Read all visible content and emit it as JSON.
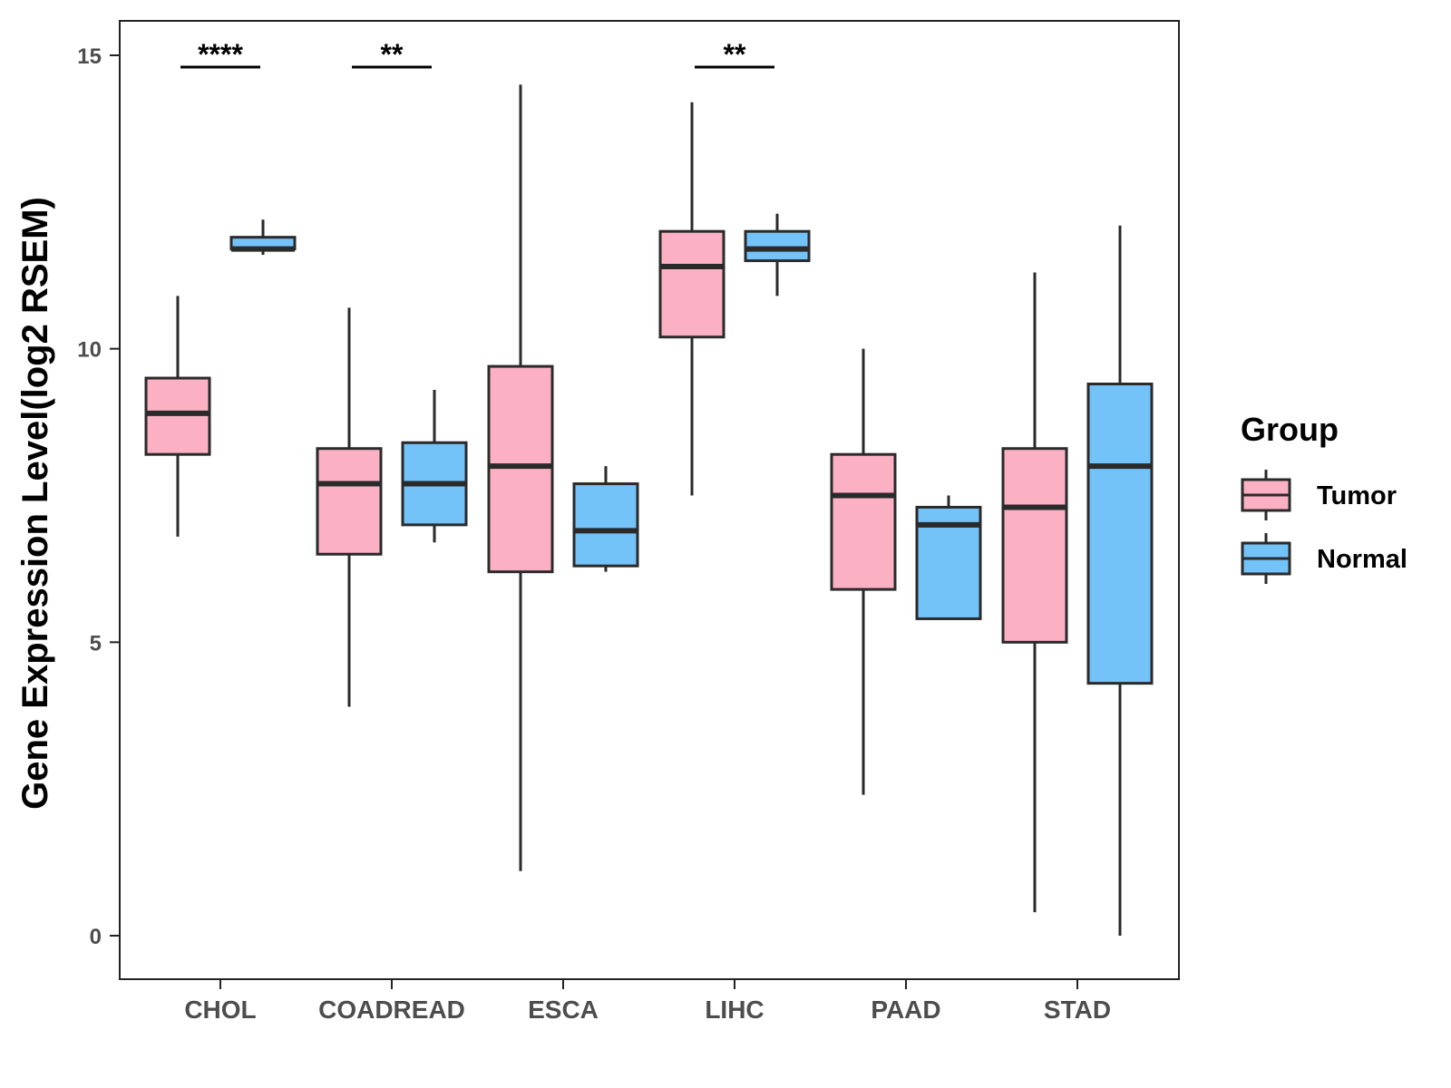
{
  "chart_data": {
    "type": "boxplot",
    "title": "",
    "xlabel": "",
    "ylabel": "Gene Expression Level(log2 RSEM)",
    "ylim": [
      -0.7,
      15.6
    ],
    "yticks": [
      0,
      5,
      10,
      15
    ],
    "grid": false,
    "legend": {
      "title": "Group",
      "position": "right",
      "entries": [
        "Tumor",
        "Normal"
      ]
    },
    "colors": {
      "Tumor": "#FBB1C3",
      "Normal": "#73C2F8",
      "outline": "#2a2a2a"
    },
    "categories": [
      "CHOL",
      "COADREAD",
      "ESCA",
      "LIHC",
      "PAAD",
      "STAD"
    ],
    "series": [
      {
        "name": "Tumor",
        "boxes": [
          {
            "min": 6.8,
            "q1": 8.2,
            "median": 8.9,
            "q3": 9.5,
            "max": 10.9
          },
          {
            "min": 3.9,
            "q1": 6.5,
            "median": 7.7,
            "q3": 8.3,
            "max": 10.7
          },
          {
            "min": 1.1,
            "q1": 6.2,
            "median": 8.0,
            "q3": 9.7,
            "max": 14.5
          },
          {
            "min": 7.5,
            "q1": 10.2,
            "median": 11.4,
            "q3": 12.0,
            "max": 14.2
          },
          {
            "min": 2.4,
            "q1": 5.9,
            "median": 7.5,
            "q3": 8.2,
            "max": 10.0
          },
          {
            "min": 0.4,
            "q1": 5.0,
            "median": 7.3,
            "q3": 8.3,
            "max": 11.3
          }
        ]
      },
      {
        "name": "Normal",
        "boxes": [
          {
            "min": 11.6,
            "q1": 11.7,
            "median": 11.7,
            "q3": 11.9,
            "max": 12.2
          },
          {
            "min": 6.7,
            "q1": 7.0,
            "median": 7.7,
            "q3": 8.4,
            "max": 9.3
          },
          {
            "min": 6.2,
            "q1": 6.3,
            "median": 6.9,
            "q3": 7.7,
            "max": 8.0
          },
          {
            "min": 10.9,
            "q1": 11.5,
            "median": 11.7,
            "q3": 12.0,
            "max": 12.3
          },
          {
            "min": 5.4,
            "q1": 5.4,
            "median": 7.0,
            "q3": 7.3,
            "max": 7.5
          },
          {
            "min": 0.0,
            "q1": 4.3,
            "median": 8.0,
            "q3": 9.4,
            "max": 12.1
          }
        ]
      }
    ],
    "annotations": [
      {
        "category": "CHOL",
        "label": "****"
      },
      {
        "category": "COADREAD",
        "label": "**"
      },
      {
        "category": "LIHC",
        "label": "**"
      }
    ]
  }
}
